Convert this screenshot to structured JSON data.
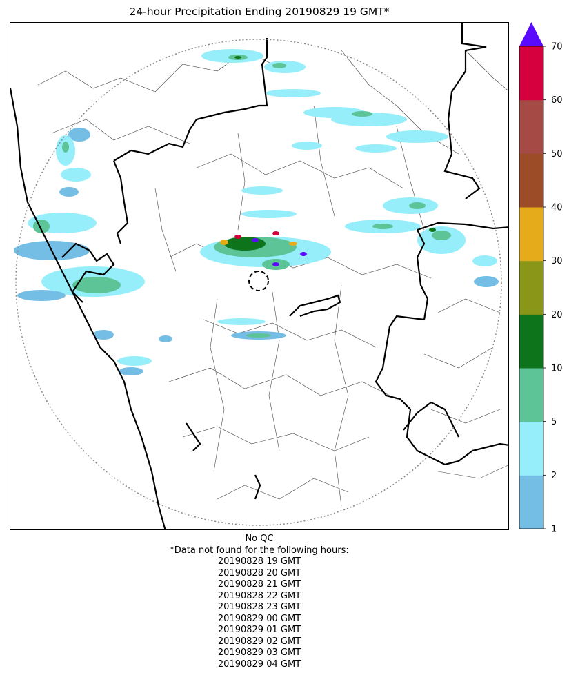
{
  "title": "24-hour Precipitation Ending 20190829 19 GMT*",
  "colorbar": {
    "levels": [
      1,
      2,
      5,
      10,
      20,
      30,
      40,
      50,
      60,
      70
    ],
    "tick_labels": [
      "1",
      "2",
      "5",
      "10",
      "20",
      "30",
      "40",
      "50",
      "60",
      "70"
    ],
    "colors": [
      "#74bde4",
      "#96eefa",
      "#5cc497",
      "#0e741b",
      "#8a9618",
      "#e6ab1a",
      "#9c4c26",
      "#a54a44",
      "#d6003f"
    ],
    "extend_color": "#5a0aff"
  },
  "footnote": {
    "qc_label": "No QC",
    "missing_label": "*Data not found for the following hours:",
    "hours": [
      "20190828 19 GMT",
      "20190828 20 GMT",
      "20190828 21 GMT",
      "20190828 22 GMT",
      "20190828 23 GMT",
      "20190829 00 GMT",
      "20190829 01 GMT",
      "20190829 02 GMT",
      "20190829 03 GMT",
      "20190829 04 GMT"
    ]
  }
}
